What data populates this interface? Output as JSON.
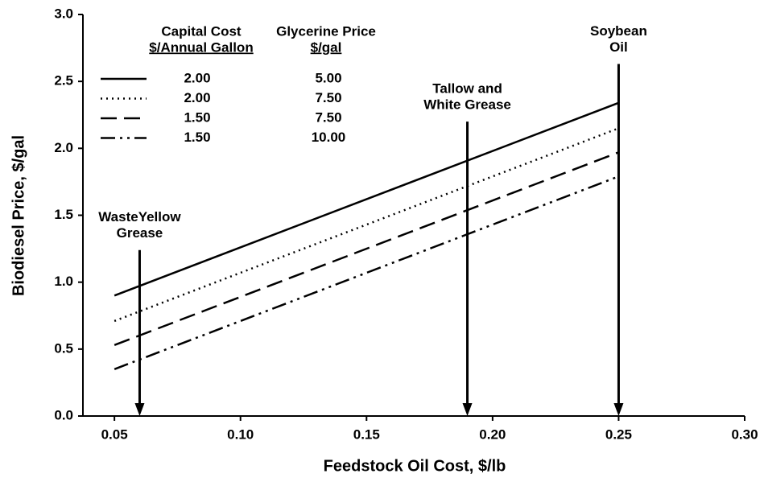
{
  "chart_data": {
    "type": "line",
    "xlabel": "Feedstock Oil Cost, $/lb",
    "ylabel": "Biodiesel Price, $/gal",
    "x": [
      0.05,
      0.25
    ],
    "legend_headers": [
      [
        "Capital Cost",
        "$/Annual Gallon"
      ],
      [
        "Glycerine Price",
        "$/gal"
      ]
    ],
    "series": [
      {
        "capital_cost": "2.00",
        "glycerine_price": "5.00",
        "color": "#000000",
        "dash": "solid",
        "values": [
          0.9,
          2.34
        ]
      },
      {
        "capital_cost": "2.00",
        "glycerine_price": "7.50",
        "color": "#000000",
        "dash": "dotted",
        "values": [
          0.71,
          2.15
        ]
      },
      {
        "capital_cost": "1.50",
        "glycerine_price": "7.50",
        "color": "#000000",
        "dash": "dashed",
        "values": [
          0.53,
          1.97
        ]
      },
      {
        "capital_cost": "1.50",
        "glycerine_price": "10.00",
        "color": "#000000",
        "dash": "dashdotdot",
        "values": [
          0.35,
          1.79
        ]
      }
    ],
    "annotations": [
      {
        "text": [
          "WasteYellow",
          "Grease"
        ],
        "x": 0.06,
        "y_top": 1.24
      },
      {
        "text": [
          "Tallow and",
          "White Grease"
        ],
        "x": 0.19,
        "y_top": 2.2
      },
      {
        "text": [
          "Soybean",
          "Oil"
        ],
        "x": 0.25,
        "y_top": 2.63
      }
    ],
    "xlim": [
      0.0375,
      0.3
    ],
    "ylim": [
      0,
      3
    ],
    "xticks": [
      {
        "value": 0.05,
        "label": "0.05"
      },
      {
        "value": 0.1,
        "label": "0.10"
      },
      {
        "value": 0.15,
        "label": "0.15"
      },
      {
        "value": 0.2,
        "label": "0.20"
      },
      {
        "value": 0.25,
        "label": "0.25"
      },
      {
        "value": 0.3,
        "label": "0.30"
      }
    ],
    "yticks": [
      {
        "value": 0,
        "label": "0.0"
      },
      {
        "value": 0.5,
        "label": "0.5"
      },
      {
        "value": 1,
        "label": "1.0"
      },
      {
        "value": 1.5,
        "label": "1.5"
      },
      {
        "value": 2,
        "label": "2.0"
      },
      {
        "value": 2.5,
        "label": "2.5"
      },
      {
        "value": 3,
        "label": "3.0"
      }
    ]
  }
}
